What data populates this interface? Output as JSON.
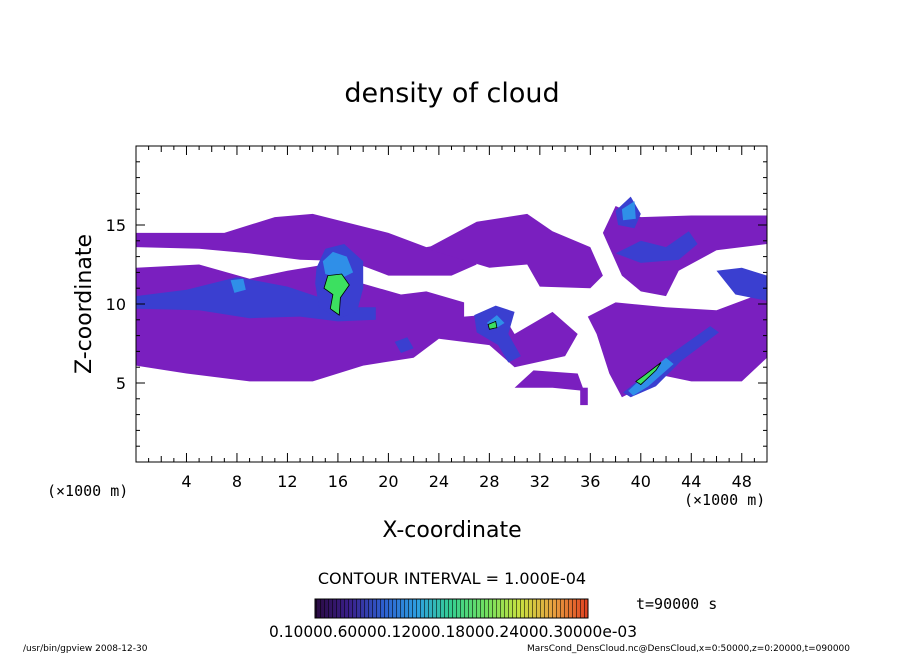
{
  "chart_data": {
    "type": "heatmap",
    "title": "density of cloud",
    "xlabel": "X-coordinate",
    "ylabel": "Z-coordinate",
    "x_unit_left": "(×1000 m)",
    "x_unit_right": "(×1000 m)",
    "xlim": [
      0,
      50
    ],
    "ylim": [
      0,
      20
    ],
    "xticks": [
      4,
      8,
      12,
      16,
      20,
      24,
      28,
      32,
      36,
      40,
      44,
      48
    ],
    "yticks": [
      5,
      10,
      15
    ],
    "contour_interval": "CONTOUR INTERVAL = 1.000E-04",
    "time_label": "t=90000 s",
    "colorbar_labels_text": "0.10000.60000.12000.18000.24000.30000e-03",
    "colorbar_colors": [
      "#2a0a40",
      "#3a1f8a",
      "#2e5fd0",
      "#2ea0e0",
      "#36d090",
      "#70e060",
      "#c8e040",
      "#e8a040",
      "#e04020"
    ],
    "field_colors": {
      "low": "#7a1fbf",
      "mid": "#3a3fd0",
      "high": "#2f8fe8",
      "peak": "#3ce060"
    },
    "regions": [
      {
        "level": "low",
        "polygon": [
          [
            0,
            14.5
          ],
          [
            7,
            14.5
          ],
          [
            11,
            15.5
          ],
          [
            14,
            15.7
          ],
          [
            20,
            14.5
          ],
          [
            23,
            13.6
          ],
          [
            26,
            14
          ],
          [
            27,
            12.5
          ],
          [
            25,
            11.8
          ],
          [
            20,
            11.8
          ],
          [
            17,
            12.7
          ],
          [
            13,
            12.8
          ],
          [
            9,
            13.2
          ],
          [
            5,
            13.5
          ],
          [
            0,
            13.6
          ]
        ]
      },
      {
        "level": "low",
        "polygon": [
          [
            0,
            12.3
          ],
          [
            5,
            12.5
          ],
          [
            9,
            11.6
          ],
          [
            12,
            12.1
          ],
          [
            15,
            12.5
          ],
          [
            17.5,
            11.4
          ],
          [
            21,
            10.6
          ],
          [
            23,
            10.8
          ],
          [
            26,
            10.1
          ],
          [
            26,
            9.2
          ],
          [
            29,
            9.4
          ],
          [
            30,
            8.1
          ],
          [
            33,
            9.5
          ],
          [
            35,
            8.1
          ],
          [
            34,
            6.7
          ],
          [
            30,
            6
          ],
          [
            28,
            7.4
          ],
          [
            24,
            7.8
          ],
          [
            22,
            6.6
          ],
          [
            18,
            6.1
          ],
          [
            14,
            5.1
          ],
          [
            9,
            5.1
          ],
          [
            4,
            5.6
          ],
          [
            0,
            6.1
          ]
        ]
      },
      {
        "level": "low",
        "polygon": [
          [
            23,
            13.5
          ],
          [
            27,
            15.2
          ],
          [
            31,
            15.7
          ],
          [
            33,
            14.6
          ],
          [
            36,
            13.6
          ],
          [
            37,
            11.8
          ],
          [
            36,
            11
          ],
          [
            32,
            11.1
          ],
          [
            31,
            12.5
          ],
          [
            28,
            12.3
          ]
        ]
      },
      {
        "level": "low",
        "polygon": [
          [
            37,
            14.5
          ],
          [
            38,
            16.2
          ],
          [
            40,
            15.5
          ],
          [
            44,
            15.6
          ],
          [
            50,
            15.6
          ],
          [
            50,
            13.8
          ],
          [
            46,
            13.4
          ],
          [
            43,
            12.1
          ],
          [
            42,
            10.5
          ],
          [
            40,
            10.8
          ],
          [
            38.5,
            11.8
          ]
        ]
      },
      {
        "level": "low",
        "polygon": [
          [
            35.8,
            9.2
          ],
          [
            38,
            10.1
          ],
          [
            42,
            9.8
          ],
          [
            46,
            9.6
          ],
          [
            50,
            10.8
          ],
          [
            50,
            6.6
          ],
          [
            48,
            5.1
          ],
          [
            44,
            5.1
          ],
          [
            41,
            5.6
          ],
          [
            40,
            4.7
          ],
          [
            38.5,
            4.1
          ],
          [
            37.5,
            5.6
          ],
          [
            36.5,
            8.1
          ]
        ]
      },
      {
        "level": "low",
        "polygon": [
          [
            30,
            4.7
          ],
          [
            33,
            4.7
          ],
          [
            35.5,
            4.5
          ],
          [
            35,
            5.6
          ],
          [
            31.5,
            5.8
          ]
        ]
      },
      {
        "level": "low",
        "polygon": [
          [
            35.2,
            3.6
          ],
          [
            35.8,
            3.6
          ],
          [
            35.8,
            4.7
          ],
          [
            35.2,
            4.7
          ]
        ]
      },
      {
        "level": "mid",
        "polygon": [
          [
            0,
            10.5
          ],
          [
            4,
            10.9
          ],
          [
            8,
            11.7
          ],
          [
            12,
            11.1
          ],
          [
            15,
            10.3
          ],
          [
            17,
            9.8
          ],
          [
            19,
            9.8
          ],
          [
            19,
            9
          ],
          [
            16,
            8.9
          ],
          [
            13,
            9.2
          ],
          [
            9,
            9.1
          ],
          [
            5,
            9.6
          ],
          [
            0,
            9.7
          ]
        ]
      },
      {
        "level": "mid",
        "polygon": [
          [
            14.3,
            12.3
          ],
          [
            15,
            13.5
          ],
          [
            16.5,
            13.8
          ],
          [
            18,
            12.7
          ],
          [
            18,
            11
          ],
          [
            17.5,
            9.5
          ],
          [
            16,
            9.1
          ],
          [
            14.5,
            9.8
          ],
          [
            14.2,
            11.3
          ]
        ]
      },
      {
        "level": "mid",
        "polygon": [
          [
            26.8,
            9.3
          ],
          [
            28.5,
            9.9
          ],
          [
            30,
            9.5
          ],
          [
            29.5,
            8.1
          ],
          [
            30.5,
            6.7
          ],
          [
            29.5,
            6.3
          ],
          [
            28.7,
            7.4
          ],
          [
            27,
            8.2
          ]
        ]
      },
      {
        "level": "mid",
        "polygon": [
          [
            38,
            15.9
          ],
          [
            39.2,
            16.8
          ],
          [
            40,
            15.7
          ],
          [
            39.5,
            14.8
          ],
          [
            38.2,
            15
          ]
        ]
      },
      {
        "level": "mid",
        "polygon": [
          [
            38.6,
            4.4
          ],
          [
            40.5,
            5.6
          ],
          [
            42.5,
            6.9
          ],
          [
            45.5,
            8.6
          ],
          [
            46.2,
            8.2
          ],
          [
            43.2,
            6.4
          ],
          [
            41.2,
            4.8
          ],
          [
            39.2,
            4.1
          ]
        ]
      },
      {
        "level": "mid",
        "polygon": [
          [
            46,
            12.1
          ],
          [
            48,
            12.3
          ],
          [
            50,
            11.8
          ],
          [
            50,
            10.2
          ],
          [
            47.5,
            10.6
          ]
        ]
      },
      {
        "level": "mid",
        "polygon": [
          [
            20.5,
            7.6
          ],
          [
            21.5,
            7.9
          ],
          [
            22,
            7.2
          ],
          [
            21,
            6.9
          ]
        ]
      },
      {
        "level": "mid",
        "polygon": [
          [
            38,
            13.2
          ],
          [
            40,
            14
          ],
          [
            42,
            13.6
          ],
          [
            43.8,
            14.6
          ],
          [
            44.5,
            13.8
          ],
          [
            43,
            12.8
          ],
          [
            40,
            12.6
          ]
        ]
      },
      {
        "level": "high",
        "polygon": [
          [
            14.8,
            12.7
          ],
          [
            15.6,
            13.3
          ],
          [
            16.7,
            13
          ],
          [
            17.2,
            12
          ],
          [
            16.2,
            11.6
          ],
          [
            15,
            11.9
          ]
        ]
      },
      {
        "level": "high",
        "polygon": [
          [
            7.5,
            11.5
          ],
          [
            8.5,
            11.6
          ],
          [
            8.7,
            10.9
          ],
          [
            7.8,
            10.7
          ]
        ]
      },
      {
        "level": "high",
        "polygon": [
          [
            38.5,
            16
          ],
          [
            39.5,
            16.5
          ],
          [
            39.6,
            15.4
          ],
          [
            38.6,
            15.3
          ]
        ]
      },
      {
        "level": "high",
        "polygon": [
          [
            39,
            4.5
          ],
          [
            40.2,
            5.4
          ],
          [
            42,
            6.6
          ],
          [
            42.6,
            6.2
          ],
          [
            40.6,
            4.8
          ],
          [
            39.4,
            4.2
          ]
        ]
      },
      {
        "level": "high",
        "polygon": [
          [
            27.8,
            8.8
          ],
          [
            28.6,
            9.3
          ],
          [
            29.2,
            8.8
          ],
          [
            28.4,
            8.4
          ]
        ]
      },
      {
        "level": "peak",
        "polygon": [
          [
            15.2,
            11.8
          ],
          [
            16.3,
            11.9
          ],
          [
            16.9,
            11.2
          ],
          [
            16.2,
            10.4
          ],
          [
            16.1,
            9.3
          ],
          [
            15.4,
            9.7
          ],
          [
            15.6,
            10.6
          ],
          [
            14.9,
            11
          ]
        ]
      },
      {
        "level": "peak",
        "polygon": [
          [
            39.6,
            5.1
          ],
          [
            40.3,
            5.5
          ],
          [
            41.6,
            6.3
          ],
          [
            41.2,
            5.8
          ],
          [
            40,
            4.9
          ]
        ]
      },
      {
        "level": "peak",
        "polygon": [
          [
            27.9,
            8.7
          ],
          [
            28.5,
            8.9
          ],
          [
            28.6,
            8.5
          ],
          [
            28,
            8.4
          ]
        ]
      }
    ]
  },
  "footer": {
    "left": "/usr/bin/gpview  2008-12-30",
    "right": "MarsCond_DensCloud.nc@DensCloud,x=0:50000,z=0:20000,t=090000"
  }
}
